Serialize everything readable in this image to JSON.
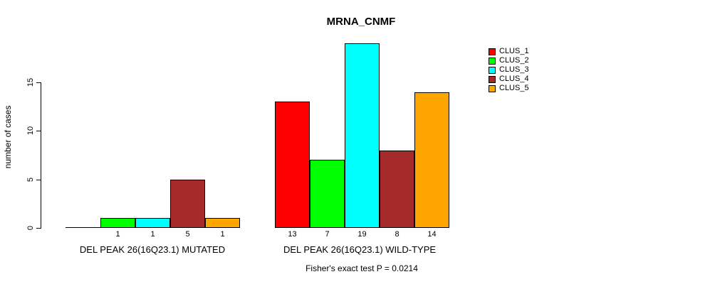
{
  "chart_data": {
    "type": "bar",
    "title": "MRNA_CNMF",
    "ylabel": "number of cases",
    "ylim": [
      0,
      15
    ],
    "yticks": [
      0,
      5,
      10,
      15
    ],
    "grid": false,
    "legend_position": "right",
    "categories": [
      "DEL PEAK 26(16Q23.1) MUTATED",
      "DEL PEAK 26(16Q23.1) WILD-TYPE"
    ],
    "series": [
      {
        "name": "CLUS_1",
        "color": "#ff0000",
        "values": [
          0,
          13
        ]
      },
      {
        "name": "CLUS_2",
        "color": "#00ff00",
        "values": [
          1,
          7
        ]
      },
      {
        "name": "CLUS_3",
        "color": "#00ffff",
        "values": [
          1,
          19
        ]
      },
      {
        "name": "CLUS_4",
        "color": "#a52a2a",
        "values": [
          5,
          8
        ]
      },
      {
        "name": "CLUS_5",
        "color": "#ffa500",
        "values": [
          1,
          14
        ]
      }
    ],
    "bar_value_labels": {
      "mutated": [
        "",
        "1",
        "1",
        "5",
        "1"
      ],
      "wild_type": [
        "13",
        "7",
        "19",
        "8",
        "14"
      ]
    },
    "annotation": "Fisher's exact test P = 0.0214"
  }
}
